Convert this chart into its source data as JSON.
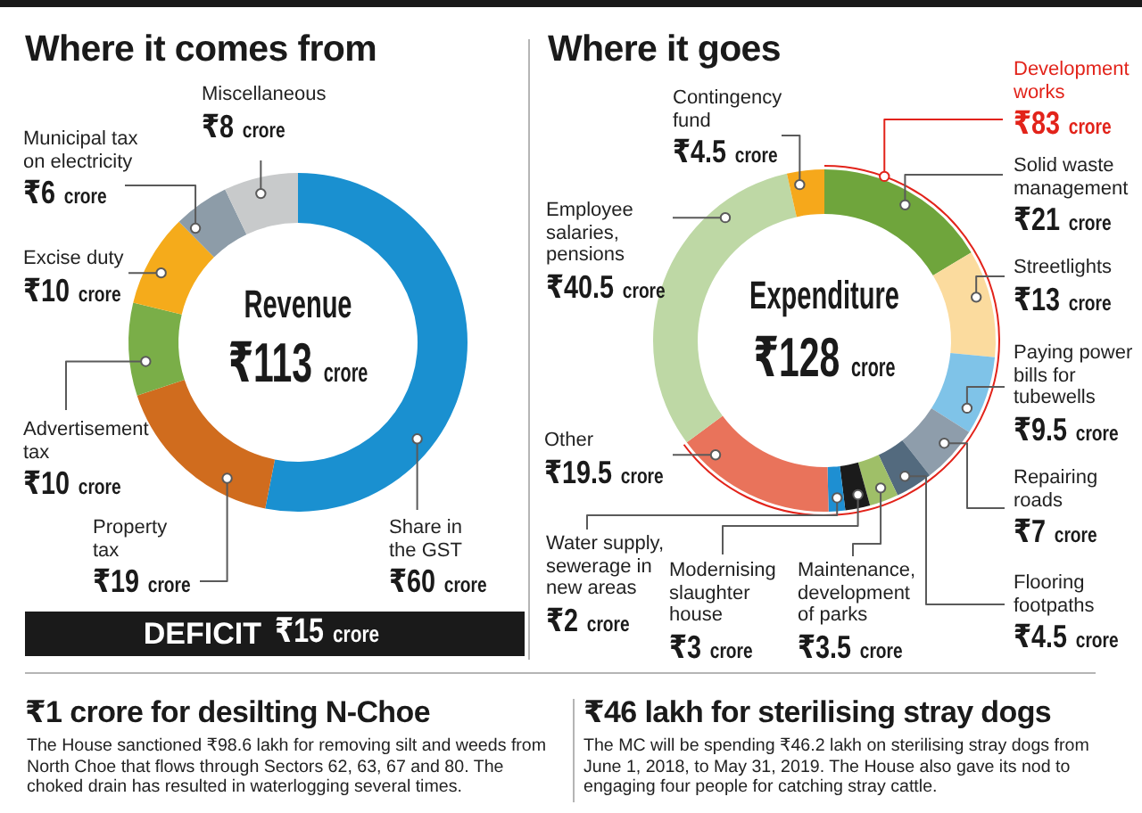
{
  "chart_data": [
    {
      "type": "donut",
      "title": "Where it comes from",
      "categories": [
        "Share in the GST",
        "Property tax",
        "Advertisement tax",
        "Excise duty",
        "Municipal tax on electricity",
        "Miscellaneous"
      ],
      "values": [
        60,
        19,
        10,
        10,
        6,
        8
      ],
      "colors": [
        "#1a90d0",
        "#d06c1e",
        "#7aae48",
        "#f5ab1b",
        "#8d9ca8",
        "#c8cacb"
      ],
      "value_labels": [
        "₹60 crore",
        "₹19 crore",
        "₹10 crore",
        "₹10 crore",
        "₹6 crore",
        "₹8 crore"
      ],
      "annotations": [
        "Revenue",
        "₹113 crore",
        "DEFICIT",
        "₹15 crore"
      ]
    },
    {
      "type": "donut",
      "title": "Where it goes",
      "categories": [
        "Solid waste management",
        "Streetlights",
        "Paying power bills for tubewells",
        "Repairing roads",
        "Flooring footpaths",
        "Maintenance, development of parks",
        "Modernising slaughter house",
        "Water supply, sewerage in new areas",
        "Other",
        "Employee salaries, pensions",
        "Contingency fund"
      ],
      "values": [
        21,
        13,
        9.5,
        7,
        4.5,
        3.5,
        3,
        2,
        19.5,
        40.5,
        4.5
      ],
      "colors": [
        "#6fa53c",
        "#fbdb9e",
        "#7fc3e8",
        "#8e9dab",
        "#536a7e",
        "#9fbf68",
        "#1b1b1b",
        "#1e8fd2",
        "#e9735b",
        "#bed8a5",
        "#f6a81b"
      ],
      "value_labels": [
        "₹21 crore",
        "₹13 crore",
        "₹9.5 crore",
        "₹7 crore",
        "₹4.5 crore",
        "₹3.5 crore",
        "₹3 crore",
        "₹2 crore",
        "₹19.5 crore",
        "₹40.5 crore",
        "₹4.5 crore"
      ],
      "annotations": [
        "Expenditure",
        "₹128 crore",
        "Development works",
        "₹83 crore"
      ]
    },
    {
      "type": "other",
      "title": "₹1 crore for desilting N-Choe",
      "annotations": [
        "The House sanctioned ₹98.6 lakh for removing silt and weeds from North Choe that flows through Sectors 62, 63, 67 and 80. The choked drain has resulted in waterlogging several times."
      ]
    },
    {
      "type": "other",
      "title": "₹46 lakh for sterilising stray dogs",
      "annotations": [
        "The MC will be spending ₹46.2 lakh on sterilising stray dogs from June 1, 2018, to May 31, 2019. The House also gave its nod to engaging four people for catching stray cattle."
      ]
    }
  ]
}
